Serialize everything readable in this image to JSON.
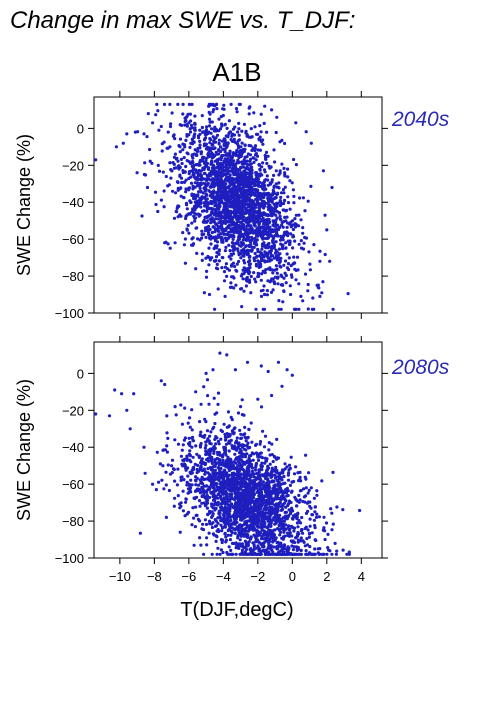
{
  "page": {
    "title": "Change in max SWE vs. T_DJF:",
    "scenario": "A1B"
  },
  "colors": {
    "points": "#1f1fbf",
    "period_label": "#2b2bb3"
  },
  "chart_data": [
    {
      "type": "scatter",
      "period_label": "2040s",
      "ylabel": "SWE Change (%)",
      "xlabel": "",
      "xlim": [
        -11.5,
        5.2
      ],
      "ylim": [
        -100,
        17
      ],
      "xticks": [
        -10,
        -8,
        -6,
        -4,
        -2,
        0,
        2,
        4
      ],
      "yticks": [
        -100,
        -80,
        -60,
        -40,
        -20,
        0
      ],
      "ytick_labels": [
        "−100",
        "−80",
        "−60",
        "−40",
        "−20",
        "0"
      ],
      "grid": false,
      "point_color": "#1f1fbf",
      "cloud": {
        "n": 2600,
        "x_center": -3.2,
        "x_sd": 1.7,
        "y_center": -40,
        "y_sd": 19,
        "slope": -5.5
      },
      "points": [
        [
          -11.4,
          -17
        ],
        [
          -10.2,
          -10
        ],
        [
          -9.6,
          -3
        ],
        [
          -9.1,
          -2
        ],
        [
          -8.6,
          -3
        ],
        [
          -8.1,
          3
        ],
        [
          -7.6,
          1
        ],
        [
          -7.2,
          -2
        ],
        [
          -6.5,
          2
        ],
        [
          -5.9,
          4
        ],
        [
          -4.8,
          5
        ],
        [
          -4.0,
          7
        ],
        [
          -3.2,
          9
        ],
        [
          -2.5,
          11
        ],
        [
          -1.6,
          12
        ],
        [
          -1.2,
          10
        ],
        [
          -0.9,
          6
        ],
        [
          0.2,
          3
        ],
        [
          1.1,
          -8
        ],
        [
          1.8,
          -23
        ],
        [
          2.3,
          -32
        ],
        [
          1.9,
          -47
        ],
        [
          2.0,
          -55
        ],
        [
          1.6,
          -72
        ],
        [
          1.5,
          -86
        ],
        [
          0.9,
          -88
        ],
        [
          0.5,
          -91
        ],
        [
          1.6,
          -91
        ],
        [
          -0.5,
          -88
        ],
        [
          -1.8,
          -88
        ],
        [
          -3.0,
          -87
        ],
        [
          -4.3,
          -87
        ],
        [
          -4.8,
          -90
        ],
        [
          -5.6,
          -76
        ],
        [
          -6.2,
          -73
        ],
        [
          -7.4,
          -62
        ],
        [
          -7.8,
          -45
        ],
        [
          -8.4,
          -32
        ],
        [
          -9.0,
          -24
        ],
        [
          -9.8,
          -8
        ],
        [
          -6.8,
          -62
        ],
        [
          -5.1,
          -89
        ],
        [
          -3.9,
          -91
        ],
        [
          -0.1,
          -90
        ]
      ]
    },
    {
      "type": "scatter",
      "period_label": "2080s",
      "ylabel": "SWE Change (%)",
      "xlabel": "T(DJF,degC)",
      "xlim": [
        -11.5,
        5.2
      ],
      "ylim": [
        -100,
        17
      ],
      "xticks": [
        -10,
        -8,
        -6,
        -4,
        -2,
        0,
        2,
        4
      ],
      "xtick_labels": [
        "−10",
        "−8",
        "−6",
        "−4",
        "−2",
        "0",
        "2",
        "4"
      ],
      "yticks": [
        -100,
        -80,
        -60,
        -40,
        -20,
        0
      ],
      "ytick_labels": [
        "−100",
        "−80",
        "−60",
        "−40",
        "−20",
        "0"
      ],
      "grid": false,
      "point_color": "#1f1fbf",
      "cloud": {
        "n": 2400,
        "x_center": -2.6,
        "x_sd": 1.8,
        "y_center": -68,
        "y_sd": 16,
        "slope": -4.5
      },
      "points": [
        [
          -11.4,
          -22
        ],
        [
          -10.6,
          -23
        ],
        [
          -10.3,
          -9
        ],
        [
          -9.9,
          -11
        ],
        [
          -9.6,
          -20
        ],
        [
          -9.2,
          -11
        ],
        [
          -7.6,
          -4
        ],
        [
          -7.4,
          -6
        ],
        [
          -6.8,
          -18
        ],
        [
          -5.6,
          -10
        ],
        [
          -5.0,
          0
        ],
        [
          -4.6,
          2
        ],
        [
          -4.2,
          11
        ],
        [
          -3.8,
          10
        ],
        [
          -3.3,
          2
        ],
        [
          -2.6,
          6
        ],
        [
          -1.8,
          4
        ],
        [
          -1.4,
          1
        ],
        [
          -0.8,
          6
        ],
        [
          -0.3,
          2
        ],
        [
          0.0,
          -1
        ],
        [
          -0.6,
          -7
        ],
        [
          -1.2,
          -12
        ],
        [
          -2.0,
          -14
        ],
        [
          -3.0,
          -18
        ],
        [
          1.1,
          -62
        ],
        [
          1.4,
          -78
        ],
        [
          1.8,
          -85
        ],
        [
          1.9,
          -90
        ],
        [
          1.5,
          -95
        ],
        [
          0.8,
          -96
        ],
        [
          -0.8,
          -97
        ],
        [
          -2.4,
          -96
        ],
        [
          -3.8,
          -97
        ],
        [
          -5.3,
          -93
        ],
        [
          -6.5,
          -86
        ],
        [
          -7.3,
          -78
        ],
        [
          -8.1,
          -60
        ],
        [
          -8.6,
          -40
        ],
        [
          -9.4,
          -30
        ],
        [
          -7.0,
          -50
        ],
        [
          -6.2,
          -35
        ]
      ]
    }
  ]
}
